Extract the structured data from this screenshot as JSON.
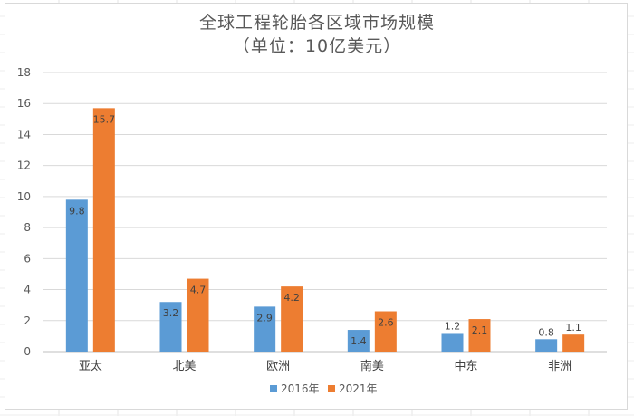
{
  "chart_data": {
    "type": "bar",
    "title": "全球工程轮胎各区域市场规模",
    "subtitle": "（单位：10亿美元）",
    "categories": [
      "亚太",
      "北美",
      "欧洲",
      "南美",
      "中东",
      "非洲"
    ],
    "series": [
      {
        "name": "2016年",
        "values": [
          9.8,
          3.2,
          2.9,
          1.4,
          1.2,
          0.8
        ],
        "color": "#5b9bd5"
      },
      {
        "name": "2021年",
        "values": [
          15.7,
          4.7,
          4.2,
          2.6,
          2.1,
          1.1
        ],
        "color": "#ed7d31"
      }
    ],
    "ylim": [
      0,
      18
    ],
    "yticks": [
      0,
      2,
      4,
      6,
      8,
      10,
      12,
      14,
      16,
      18
    ],
    "grid": true,
    "legend": "bottom-center",
    "xlabel": "",
    "ylabel": ""
  },
  "colors": {
    "gridline": "#d9d9d9",
    "axis": "#bfbfbf",
    "title": "#595959"
  }
}
